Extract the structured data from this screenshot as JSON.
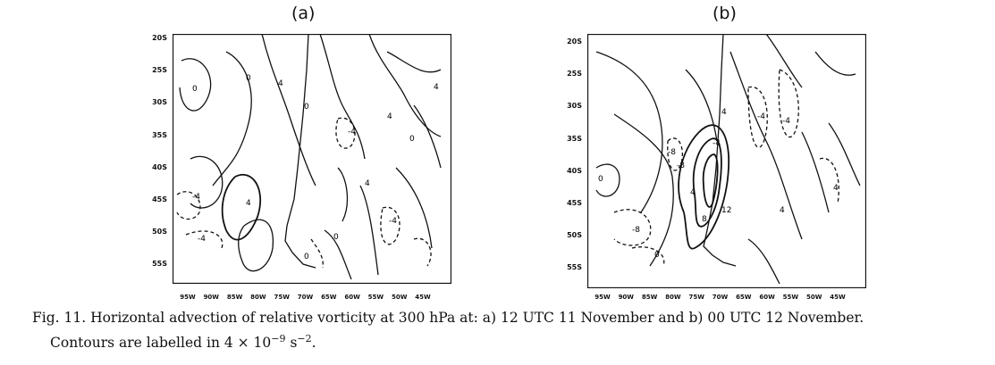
{
  "panels": [
    {
      "label": "(a)",
      "lat_ticks": [
        "20S",
        "25S",
        "30S",
        "35S",
        "40S",
        "45S",
        "50S",
        "55S"
      ],
      "lon_ticks": [
        "95W",
        "90W",
        "85W",
        "80W",
        "75W",
        "70W",
        "65W",
        "60W",
        "55W",
        "50W",
        "45W"
      ],
      "contour_labels": [
        "0",
        "0",
        "4",
        "0",
        "4",
        "-4",
        "4",
        "-4",
        "0",
        "4",
        "0",
        "-4",
        "-4",
        "0",
        "4"
      ]
    },
    {
      "label": "(b)",
      "lat_ticks": [
        "20S",
        "25S",
        "30S",
        "35S",
        "40S",
        "45S",
        "50S",
        "55S"
      ],
      "lon_ticks": [
        "95W",
        "90W",
        "85W",
        "80W",
        "75W",
        "70W",
        "65W",
        "60W",
        "55W",
        "50W",
        "45W"
      ],
      "contour_labels": [
        "0",
        "-4",
        "4",
        "-8",
        "4",
        "12",
        "-8",
        "8",
        "-4",
        "4",
        "0",
        "4",
        "-4",
        "-8"
      ]
    }
  ],
  "caption": {
    "line1": "Fig. 11. Horizontal advection of relative vorticity at 300 hPa at: a) 12 UTC 11 November and b) 00 UTC 12 November.",
    "line2_prefix": "Contours are labelled in ",
    "line2_coef": "4 × 10",
    "line2_exp": "−9",
    "line2_unit": " s",
    "line2_unit_exp": "−2",
    "line2_suffix": "."
  }
}
